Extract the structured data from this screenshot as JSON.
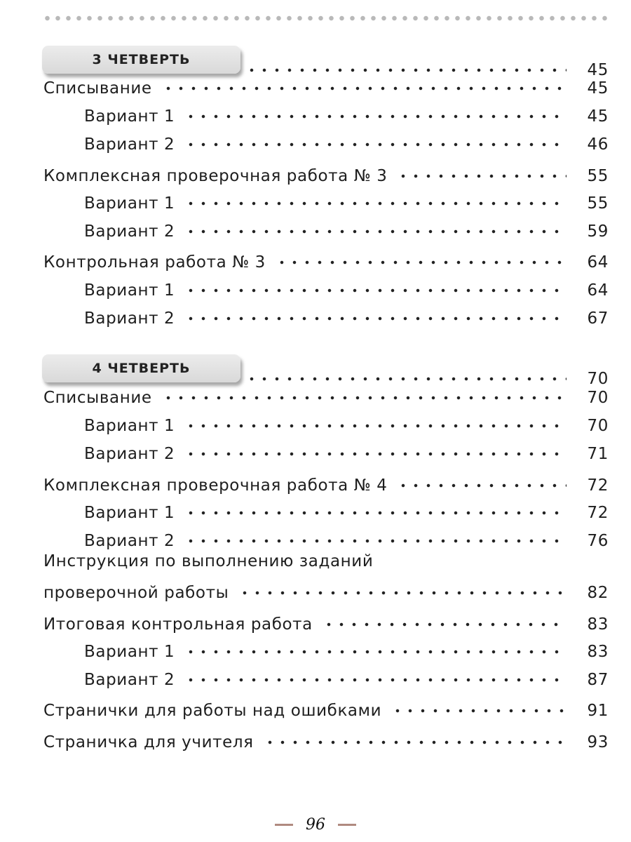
{
  "sections": [
    {
      "title": "3 ЧЕТВЕРТЬ",
      "page": "45",
      "items": [
        {
          "label": "Списывание",
          "page": "45",
          "level": 0
        },
        {
          "label": "Вариант 1",
          "page": "45",
          "level": 1
        },
        {
          "label": "Вариант 2",
          "page": "46",
          "level": 1
        },
        {
          "label": "Комплексная проверочная работа № 3",
          "page": "55",
          "level": 0
        },
        {
          "label": "Вариант 1",
          "page": "55",
          "level": 1
        },
        {
          "label": "Вариант 2",
          "page": "59",
          "level": 1
        },
        {
          "label": "Контрольная работа № 3",
          "page": "64",
          "level": 0
        },
        {
          "label": "Вариант 1",
          "page": "64",
          "level": 1
        },
        {
          "label": "Вариант 2",
          "page": "67",
          "level": 1
        }
      ]
    },
    {
      "title": "4 ЧЕТВЕРТЬ",
      "page": "70",
      "items": [
        {
          "label": "Списывание",
          "page": "70",
          "level": 0
        },
        {
          "label": "Вариант 1",
          "page": "70",
          "level": 1
        },
        {
          "label": "Вариант 2",
          "page": "71",
          "level": 1
        },
        {
          "label": "Комплексная проверочная работа № 4",
          "page": "72",
          "level": 0
        },
        {
          "label": "Вариант 1",
          "page": "72",
          "level": 1
        },
        {
          "label": "Вариант 2",
          "page": "76",
          "level": 1
        },
        {
          "label_line1": "Инструкция по выполнению заданий",
          "label": "проверочной работы",
          "page": "82",
          "level": 0
        },
        {
          "label": "Итоговая контрольная работа",
          "page": "83",
          "level": 0
        },
        {
          "label": "Вариант 1",
          "page": "83",
          "level": 1
        },
        {
          "label": "Вариант 2",
          "page": "87",
          "level": 1
        },
        {
          "label": "Странички для работы над ошибками",
          "page": "91",
          "level": 0
        },
        {
          "label": "Страничка для учителя",
          "page": "93",
          "level": 0
        }
      ]
    }
  ],
  "footer": {
    "page_number": "96"
  }
}
